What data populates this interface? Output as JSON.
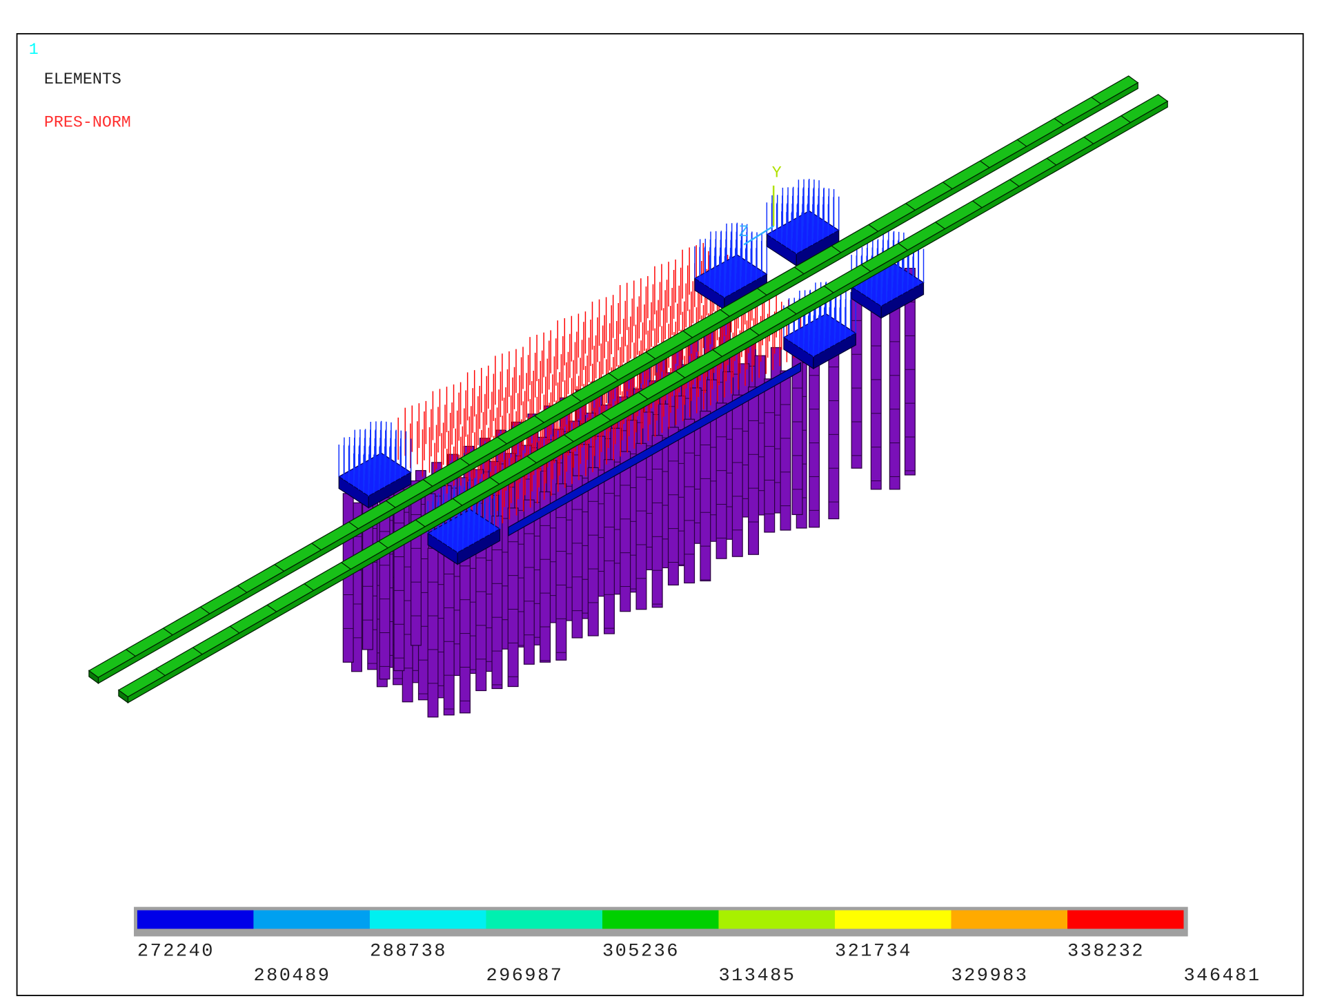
{
  "window": {
    "number": "1",
    "label": "ELEMENTS",
    "load": "PRES-NORM",
    "triad": {
      "y": "Y",
      "z": "Z"
    }
  },
  "legend": {
    "colors": [
      "#0000e8",
      "#00a0f0",
      "#00f0f0",
      "#00f0b0",
      "#00d000",
      "#a8f000",
      "#ffff00",
      "#ffaa00",
      "#ff0000"
    ],
    "values": [
      272240,
      280489,
      288738,
      296987,
      305236,
      313485,
      321734,
      329983,
      338232,
      346481
    ]
  }
}
